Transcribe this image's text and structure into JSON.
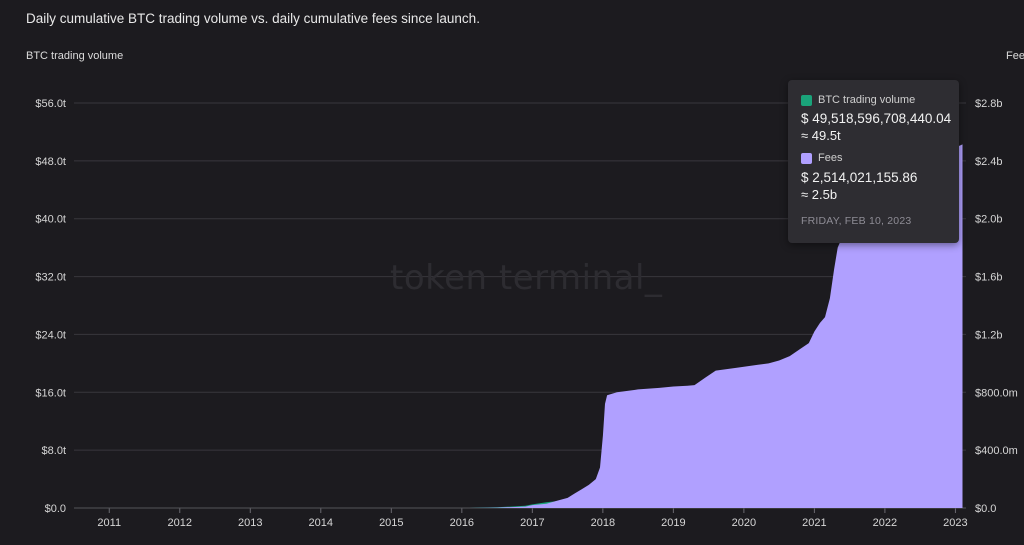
{
  "chart_data": {
    "type": "area",
    "title": "Daily cumulative BTC trading volume vs. daily cumulative fees since launch.",
    "left_axis_label": "BTC trading volume",
    "right_axis_label": "Fees",
    "left_ticks": [
      "$0.0",
      "$8.0t",
      "$16.0t",
      "$24.0t",
      "$32.0t",
      "$40.0t",
      "$48.0t",
      "$56.0t"
    ],
    "left_tick_values": [
      0,
      8,
      16,
      24,
      32,
      40,
      48,
      56
    ],
    "right_ticks": [
      "$0.0",
      "$400.0m",
      "$800.0m",
      "$1.2b",
      "$1.6b",
      "$2.0b",
      "$2.4b",
      "$2.8b"
    ],
    "right_tick_values": [
      0,
      0.4,
      0.8,
      1.2,
      1.6,
      2.0,
      2.4,
      2.8
    ],
    "left_ylim": [
      0,
      56
    ],
    "right_ylim": [
      0,
      2.8
    ],
    "x_ticks": [
      "2011",
      "2012",
      "2013",
      "2014",
      "2015",
      "2016",
      "2017",
      "2018",
      "2019",
      "2020",
      "2021",
      "2022",
      "2023"
    ],
    "xlim": [
      2010.5,
      2023.15
    ],
    "grid": true,
    "series": [
      {
        "name": "BTC trading volume",
        "unit": "trillion USD",
        "color": "#1aa37a",
        "x": [
          2016.1,
          2016.5,
          2016.9,
          2017.0,
          2017.2,
          2017.4,
          2017.5
        ],
        "y": [
          0.0,
          0.1,
          0.3,
          0.5,
          0.8,
          1.0,
          1.1
        ]
      },
      {
        "name": "Fees",
        "unit": "billion USD",
        "color": "#b0a0ff",
        "x": [
          2016.1,
          2016.5,
          2016.9,
          2017.0,
          2017.2,
          2017.35,
          2017.5,
          2017.6,
          2017.7,
          2017.8,
          2017.9,
          2017.96,
          2018.0,
          2018.03,
          2018.06,
          2018.2,
          2018.5,
          2018.8,
          2019.0,
          2019.2,
          2019.3,
          2019.45,
          2019.6,
          2019.9,
          2020.2,
          2020.35,
          2020.5,
          2020.65,
          2020.8,
          2020.92,
          2021.0,
          2021.08,
          2021.15,
          2021.22,
          2021.28,
          2021.33,
          2021.4,
          2021.5,
          2021.6,
          2021.7,
          2021.8,
          2022.0,
          2022.3,
          2022.6,
          2022.9,
          2023.1
        ],
        "y": [
          0.0,
          0.003,
          0.01,
          0.02,
          0.03,
          0.05,
          0.07,
          0.1,
          0.13,
          0.16,
          0.2,
          0.28,
          0.5,
          0.72,
          0.78,
          0.8,
          0.82,
          0.83,
          0.84,
          0.845,
          0.85,
          0.9,
          0.95,
          0.97,
          0.99,
          1.0,
          1.02,
          1.05,
          1.1,
          1.14,
          1.22,
          1.28,
          1.32,
          1.45,
          1.65,
          1.8,
          1.88,
          1.95,
          2.0,
          2.05,
          2.1,
          2.2,
          2.3,
          2.4,
          2.47,
          2.514
        ]
      }
    ],
    "tooltip": {
      "series1_name": "BTC trading volume",
      "series1_color": "#1aa37a",
      "series1_value": "$ 49,518,596,708,440.04",
      "series1_approx": "≈ 49.5t",
      "series2_name": "Fees",
      "series2_color": "#b0a0ff",
      "series2_value": "$ 2,514,021,155.86",
      "series2_approx": "≈ 2.5b",
      "date": "FRIDAY, FEB 10, 2023"
    }
  },
  "watermark": "token terminal_",
  "colors": {
    "background": "#1c1b1f",
    "grid": "#38373d",
    "volume": "#1aa37a",
    "fees": "#b0a0ff"
  }
}
